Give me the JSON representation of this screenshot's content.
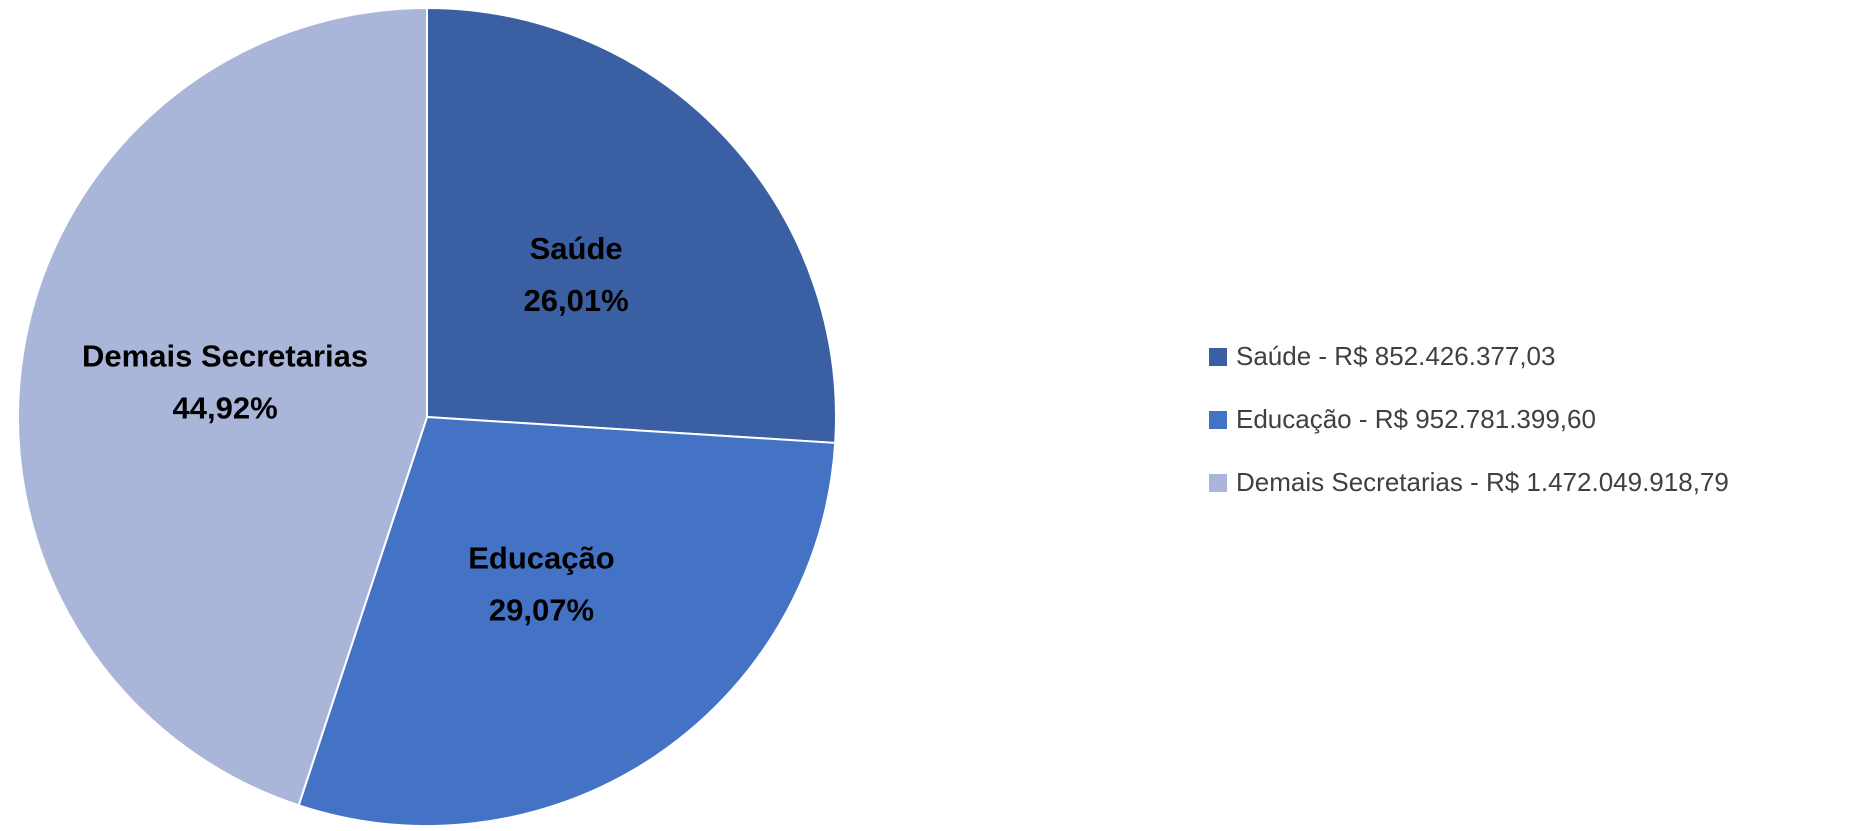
{
  "chart_data": {
    "type": "pie",
    "categories": [
      "Saúde",
      "Educação",
      "Demais Secretarias"
    ],
    "values": [
      26.01,
      29.07,
      44.92
    ],
    "value_labels": [
      "26,01%",
      "29,07%",
      "44,92%"
    ],
    "colors": [
      "#3a5fa3",
      "#4472c4",
      "#a9b6da"
    ],
    "legend": [
      "Saúde - R$ 852.426.377,03",
      "Educação - R$ 952.781.399,60",
      "Demais Secretarias - R$ 1.472.049.918,79"
    ],
    "legend_position": "right"
  }
}
